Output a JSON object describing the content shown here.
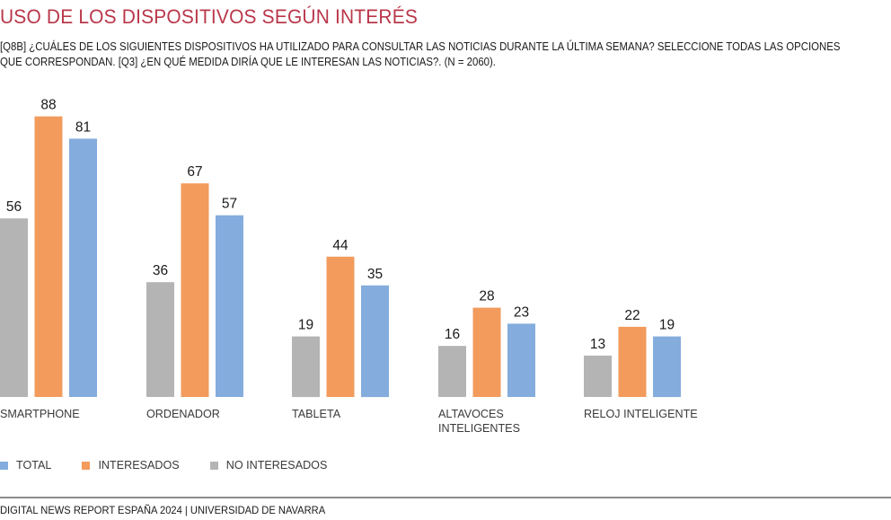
{
  "header": {
    "title": "USO DE LOS DISPOSITIVOS SEGÚN INTERÉS",
    "subtitle": "[Q8B] ¿CUÁLES DE LOS SIGUIENTES DISPOSITIVOS HA UTILIZADO PARA CONSULTAR LAS NOTICIAS  DURANTE LA ÚLTIMA SEMANA? SELECCIONE TODAS LAS OPCIONES QUE CORRESPONDAN. [Q3] ¿EN QUÉ MEDIDA DIRÍA QUE LE INTERESAN LAS NOTICIAS?. (N = 2060)."
  },
  "legend": [
    {
      "label": "TOTAL",
      "color": "#84acdd"
    },
    {
      "label": "INTERESADOS",
      "color": "#f29b5c"
    },
    {
      "label": "NO INTERESADOS",
      "color": "#b4b4b4"
    }
  ],
  "footer": {
    "source": "DIGITAL NEWS REPORT ESPAÑA 2024 | UNIVERSIDAD DE NAVARRA"
  },
  "chart_data": {
    "type": "bar",
    "title": "USO DE LOS DISPOSITIVOS SEGÚN INTERÉS",
    "xlabel": "",
    "ylabel": "",
    "ylim": [
      0,
      100
    ],
    "grid": false,
    "legend_position": "bottom-left",
    "categories": [
      [
        "SMARTPHONE"
      ],
      [
        "ORDENADOR"
      ],
      [
        "TABLETA"
      ],
      [
        "ALTAVOCES",
        "INTELIGENTES"
      ],
      [
        "RELOJ INTELIGENTE"
      ]
    ],
    "series": [
      {
        "name": "NO INTERESADOS",
        "color": "#b4b4b4",
        "values": [
          56,
          36,
          19,
          16,
          13
        ]
      },
      {
        "name": "INTERESADOS",
        "color": "#f29b5c",
        "values": [
          88,
          67,
          44,
          28,
          22
        ]
      },
      {
        "name": "TOTAL",
        "color": "#84acdd",
        "values": [
          81,
          57,
          35,
          23,
          19
        ]
      }
    ]
  }
}
